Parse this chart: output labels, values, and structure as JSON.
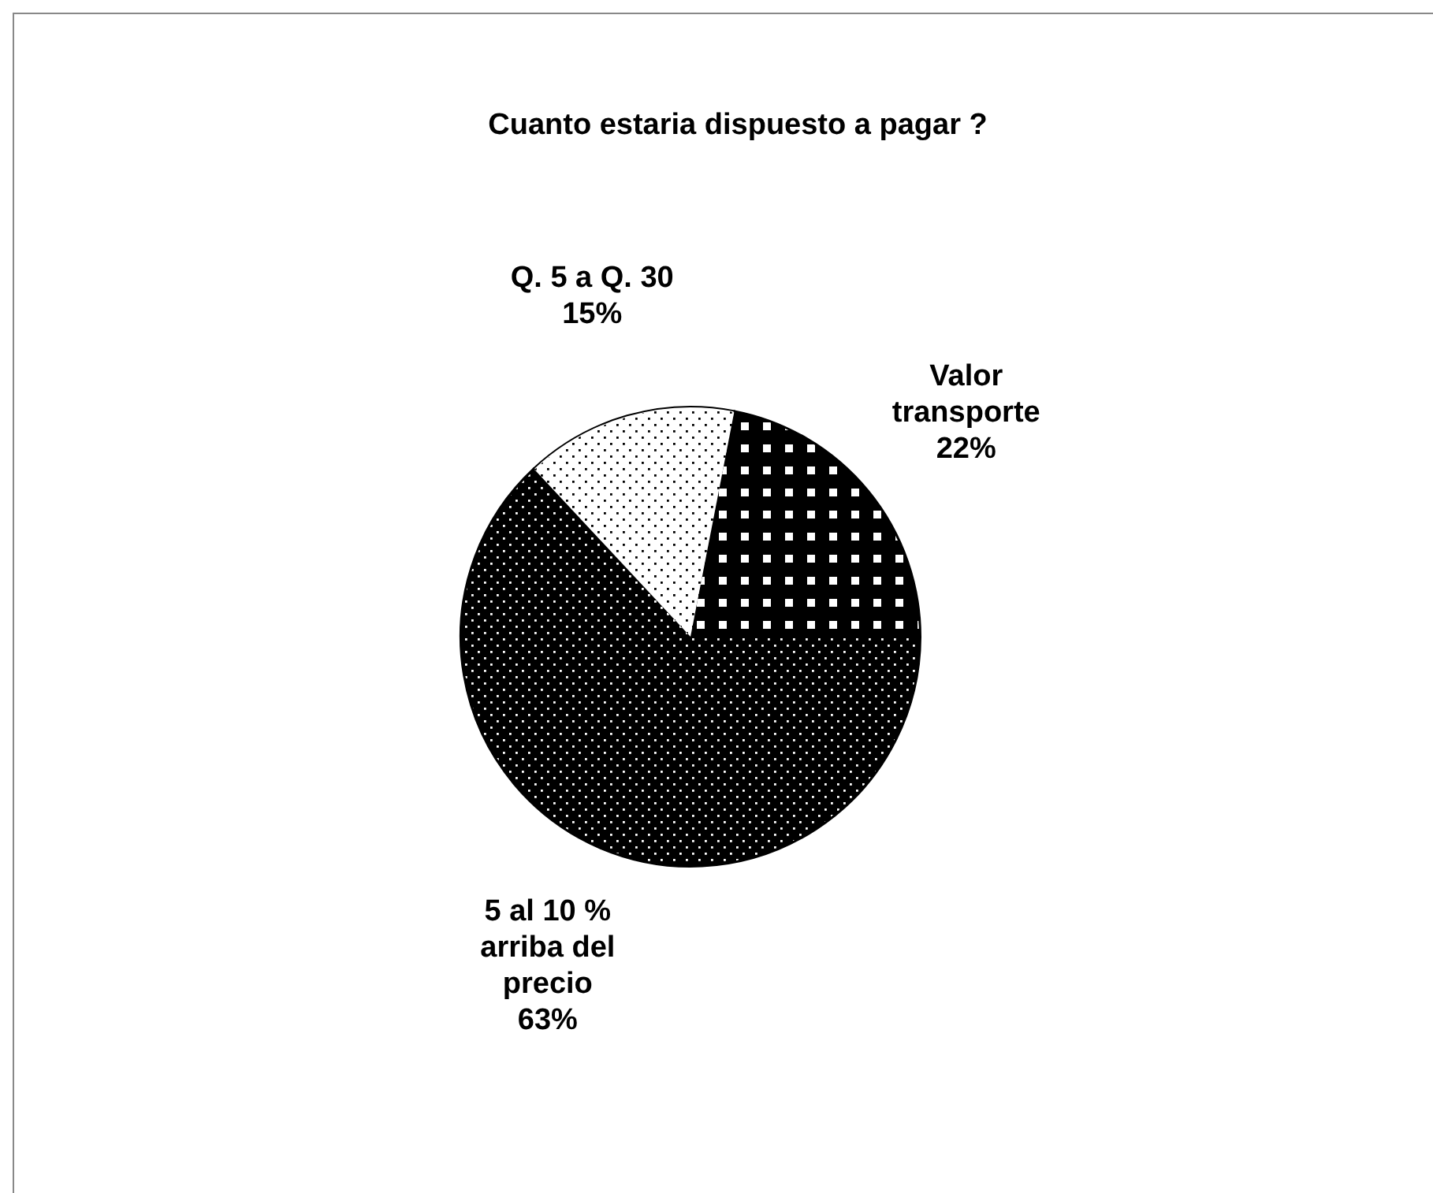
{
  "chart_data": {
    "type": "pie",
    "title": "Cuanto estaria dispuesto a pagar ?",
    "categories": [
      "Valor transporte",
      "5 al 10 % arriba del precio",
      "Q. 5  a Q. 30"
    ],
    "values": [
      22,
      63,
      15
    ],
    "colors": [
      "#000000",
      "#000000",
      "#ffffff"
    ],
    "value_labels": [
      "22%",
      "63%",
      "15%"
    ]
  }
}
